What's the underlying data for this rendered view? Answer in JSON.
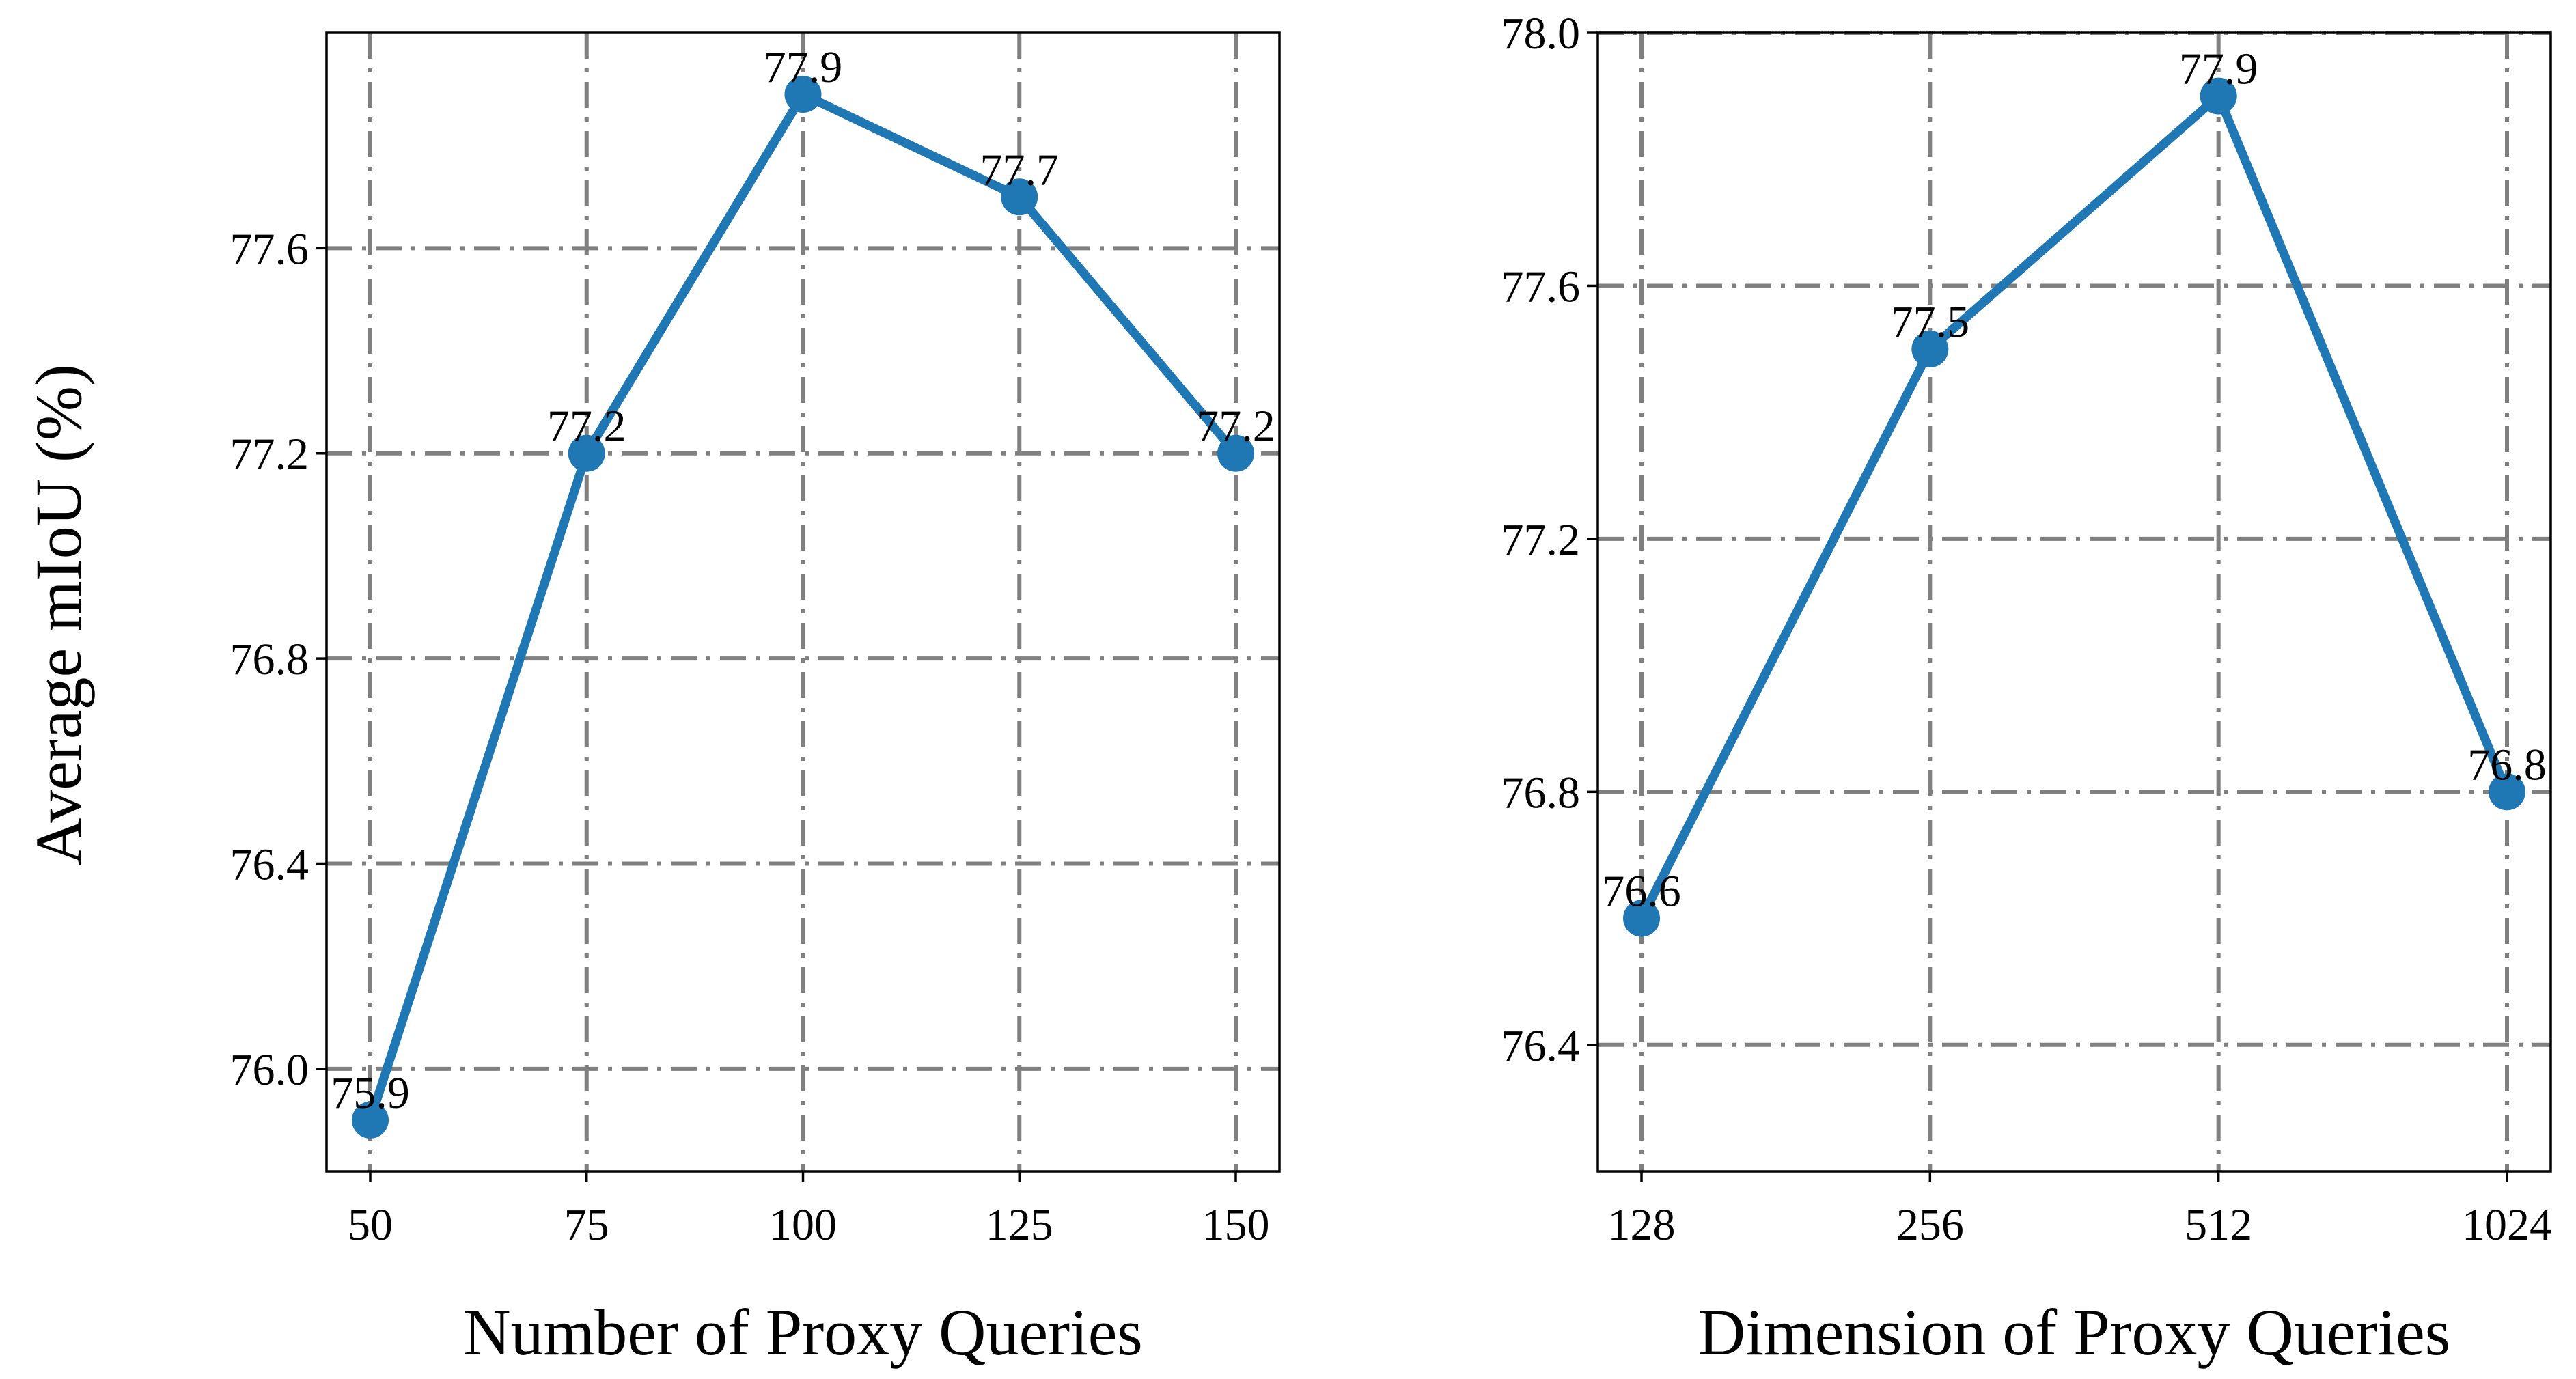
{
  "figure": {
    "shared_ylabel": "Average mIoU (%)"
  },
  "chart_data": [
    {
      "type": "line",
      "title": "",
      "xlabel": "Number of Proxy Queries",
      "ylabel": "Average mIoU (%)",
      "categories": [
        "50",
        "75",
        "100",
        "125",
        "150"
      ],
      "values": [
        75.9,
        77.2,
        77.9,
        77.7,
        77.2
      ],
      "data_labels": [
        "75.9",
        "77.2",
        "77.9",
        "77.7",
        "77.2"
      ],
      "ylim": [
        75.8,
        78.02
      ],
      "yticks": [
        76.0,
        76.4,
        76.8,
        77.2,
        77.6
      ],
      "ytick_labels": [
        "76.0",
        "76.4",
        "76.8",
        "77.2",
        "77.6"
      ],
      "grid": true,
      "legend": "none",
      "color": "#1f77b4"
    },
    {
      "type": "line",
      "title": "",
      "xlabel": "Dimension of Proxy Queries",
      "ylabel": "",
      "categories": [
        "128",
        "256",
        "512",
        "1024"
      ],
      "values": [
        76.6,
        77.5,
        77.9,
        76.8
      ],
      "data_labels": [
        "76.6",
        "77.5",
        "77.9",
        "76.8"
      ],
      "ylim": [
        76.2,
        78.0
      ],
      "yticks": [
        76.4,
        76.8,
        77.2,
        77.6,
        78.0
      ],
      "ytick_labels": [
        "76.4",
        "76.8",
        "77.2",
        "77.6",
        "78.0"
      ],
      "grid": true,
      "legend": "none",
      "color": "#1f77b4"
    }
  ]
}
